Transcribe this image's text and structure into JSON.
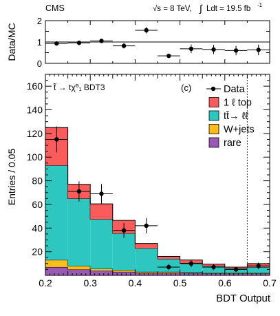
{
  "header": {
    "experiment": "CMS",
    "energy": "√s = 8 TeV,",
    "lumi_prefix": "∫",
    "lumi": "Ldt = 19.5 fb",
    "lumi_exp": "-1"
  },
  "chart_data": [
    {
      "type": "scatter",
      "panel": "ratio",
      "ylabel": "Data/MC",
      "xlim": [
        0.2,
        0.7
      ],
      "ylim": [
        0,
        2
      ],
      "yticks": [
        {
          "v": 0,
          "label": "0"
        },
        {
          "v": 0.5,
          "label": ""
        },
        {
          "v": 1,
          "label": "1"
        },
        {
          "v": 1.5,
          "label": ""
        },
        {
          "v": 2,
          "label": "2"
        }
      ],
      "reference_line": 1,
      "x": [
        0.225,
        0.275,
        0.325,
        0.375,
        0.425,
        0.475,
        0.525,
        0.575,
        0.625,
        0.675
      ],
      "y": [
        0.93,
        0.96,
        1.05,
        0.82,
        1.55,
        0.35,
        0.68,
        0.65,
        0.6,
        0.63
      ],
      "yerr": [
        0.06,
        0.08,
        0.1,
        0.12,
        0.15,
        0.1,
        0.2,
        0.22,
        0.22,
        0.25
      ]
    },
    {
      "type": "bar",
      "panel": "main",
      "stacked": true,
      "title": "t̃ → tχ̃⁰₁  BDT3",
      "panel_label": "(c)",
      "xlabel": "BDT Output",
      "ylabel": "Entries / 0.05",
      "xlim": [
        0.2,
        0.7
      ],
      "ylim": [
        0,
        170
      ],
      "xticks": [
        "0.2",
        "0.3",
        "0.4",
        "0.5",
        "0.6",
        "0.7"
      ],
      "xtick_values": [
        0.2,
        0.3,
        0.4,
        0.5,
        0.6,
        0.7
      ],
      "yticks": [
        "20",
        "40",
        "60",
        "80",
        "100",
        "120",
        "140",
        "160"
      ],
      "ytick_values": [
        20,
        40,
        60,
        80,
        100,
        120,
        140,
        160
      ],
      "cut_line": 0.65,
      "bin_edges": [
        0.2,
        0.25,
        0.3,
        0.35,
        0.4,
        0.45,
        0.5,
        0.55,
        0.6,
        0.65,
        0.7
      ],
      "series": [
        {
          "name": "rare",
          "color": "#9b59b6",
          "values": [
            7,
            5,
            4,
            3,
            2,
            2,
            2,
            1.5,
            1.5,
            1.5
          ]
        },
        {
          "name": "W+jets",
          "color": "#fcbd1c",
          "values": [
            6,
            3,
            1.5,
            1.5,
            1,
            1,
            0.5,
            0.5,
            0.5,
            0.5
          ]
        },
        {
          "name": "tt̄→ ℓℓ",
          "color": "#2ec7c0",
          "values": [
            80,
            57,
            42,
            31,
            20,
            11,
            8,
            6,
            4,
            5
          ]
        },
        {
          "name": "1 ℓ top",
          "color": "#fa5b5b",
          "values": [
            32,
            12,
            13,
            11,
            4,
            2,
            2.5,
            1.5,
            1,
            3
          ]
        }
      ],
      "data": {
        "name": "Data",
        "x": [
          0.225,
          0.275,
          0.325,
          0.375,
          0.425,
          0.475,
          0.525,
          0.575,
          0.625,
          0.675
        ],
        "y": [
          115,
          71,
          69,
          38,
          42,
          7,
          10,
          7,
          5,
          8
        ],
        "yerr": [
          11,
          8.5,
          8.3,
          6.2,
          6.5,
          2.6,
          3.2,
          2.6,
          2.2,
          2.8
        ]
      },
      "legend": {
        "position": "top-right",
        "entries": [
          "Data",
          "1 ℓ top",
          "tt̄→ ℓℓ",
          "W+jets",
          "rare"
        ]
      }
    }
  ]
}
